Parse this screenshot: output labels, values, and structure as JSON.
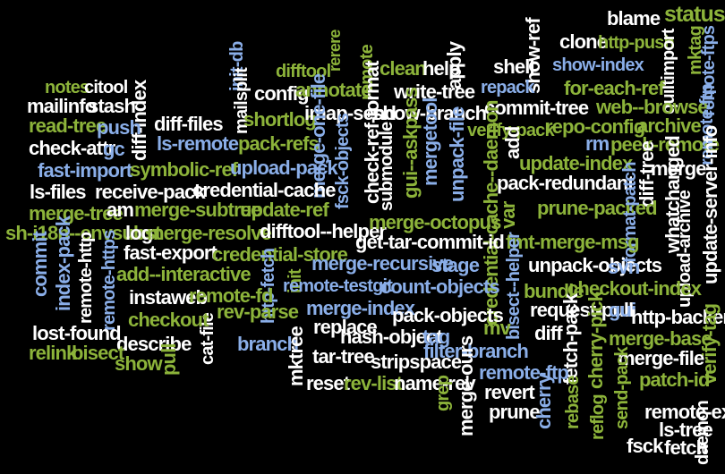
{
  "colors": {
    "white": "#ffffff",
    "green": "#8cb33a",
    "blue": "#8aaee8",
    "background": "#000000"
  },
  "words": [
    {
      "id": "blame",
      "text": "blame",
      "color": "white"
    },
    {
      "id": "status",
      "text": "status",
      "color": "green"
    },
    {
      "id": "clone",
      "text": "clone",
      "color": "white"
    },
    {
      "id": "http-push",
      "text": "http-push",
      "color": "green"
    },
    {
      "id": "quiltimport",
      "text": "quiltimport",
      "color": "white"
    },
    {
      "id": "mktag",
      "text": "mktag",
      "color": "green"
    },
    {
      "id": "show-ref",
      "text": "show-ref",
      "color": "white"
    },
    {
      "id": "show-index",
      "text": "show-index",
      "color": "blue"
    },
    {
      "id": "remote-ftps",
      "text": "remote-ftps",
      "color": "blue"
    },
    {
      "id": "init-db",
      "text": "init-db",
      "color": "blue"
    },
    {
      "id": "difftool",
      "text": "difftool",
      "color": "green"
    },
    {
      "id": "rerere",
      "text": "rerere",
      "color": "green"
    },
    {
      "id": "remote-v",
      "text": "remote",
      "color": "green"
    },
    {
      "id": "clean",
      "text": "clean",
      "color": "green"
    },
    {
      "id": "help",
      "text": "help",
      "color": "white"
    },
    {
      "id": "apply",
      "text": "apply",
      "color": "white"
    },
    {
      "id": "shell",
      "text": "shell",
      "color": "white"
    },
    {
      "id": "for-each-ref",
      "text": "for-each-ref",
      "color": "green"
    },
    {
      "id": "notes",
      "text": "notes",
      "color": "green"
    },
    {
      "id": "citool",
      "text": "citool",
      "color": "white"
    },
    {
      "id": "mailinfo",
      "text": "mailinfo",
      "color": "white"
    },
    {
      "id": "stash",
      "text": "stash",
      "color": "white"
    },
    {
      "id": "config",
      "text": "config",
      "color": "white"
    },
    {
      "id": "annotate",
      "text": "annotate",
      "color": "green"
    },
    {
      "id": "write-tree",
      "text": "write-tree",
      "color": "white"
    },
    {
      "id": "repack",
      "text": "repack",
      "color": "blue"
    },
    {
      "id": "web--browse",
      "text": "web--browse",
      "color": "green"
    },
    {
      "id": "diff-index",
      "text": "diff-index",
      "color": "white"
    },
    {
      "id": "mailsplit",
      "text": "mailsplit",
      "color": "white"
    },
    {
      "id": "shortlog",
      "text": "shortlog",
      "color": "green"
    },
    {
      "id": "imap-send",
      "text": "imap-send",
      "color": "white"
    },
    {
      "id": "show-branch",
      "text": "show-branch",
      "color": "white"
    },
    {
      "id": "commit-tree",
      "text": "commit-tree",
      "color": "white"
    },
    {
      "id": "read-tree",
      "text": "read-tree",
      "color": "green"
    },
    {
      "id": "push",
      "text": "push",
      "color": "blue"
    },
    {
      "id": "diff-files",
      "text": "diff-files",
      "color": "white"
    },
    {
      "id": "check-ref-format",
      "text": "check-ref-format",
      "color": "white"
    },
    {
      "id": "archive",
      "text": "archive",
      "color": "green"
    },
    {
      "id": "ls-remote",
      "text": "ls-remote",
      "color": "blue"
    },
    {
      "id": "pack-refs",
      "text": "pack-refs",
      "color": "green"
    },
    {
      "id": "merge-one-file",
      "text": "merge-one-file",
      "color": "blue"
    },
    {
      "id": "gui--askpass",
      "text": "gui--askpass",
      "color": "green"
    },
    {
      "id": "verify-pack",
      "text": "verify-pack",
      "color": "green"
    },
    {
      "id": "repo-config",
      "text": "repo-config",
      "color": "green"
    },
    {
      "id": "check-attr",
      "text": "check-attr",
      "color": "white"
    },
    {
      "id": "gc",
      "text": "gc",
      "color": "blue"
    },
    {
      "id": "mergetool",
      "text": "mergetool",
      "color": "blue"
    },
    {
      "id": "rm",
      "text": "rm",
      "color": "blue"
    },
    {
      "id": "peek-remote",
      "text": "peek-remote",
      "color": "green"
    },
    {
      "id": "remote-ftp-v",
      "text": "remote-ftp",
      "color": "blue"
    },
    {
      "id": "fast-import",
      "text": "fast-import",
      "color": "blue"
    },
    {
      "id": "symbolic-ref",
      "text": "symbolic-ref",
      "color": "green"
    },
    {
      "id": "upload-pack",
      "text": "upload-pack",
      "color": "blue"
    },
    {
      "id": "fsck-objects",
      "text": "fsck-objects",
      "color": "blue"
    },
    {
      "id": "unpack-file",
      "text": "unpack-file",
      "color": "blue"
    },
    {
      "id": "add",
      "text": "add",
      "color": "white"
    },
    {
      "id": "update-index",
      "text": "update-index",
      "color": "green"
    },
    {
      "id": "merge",
      "text": "merge",
      "color": "white"
    },
    {
      "id": "ls-files",
      "text": "ls-files",
      "color": "white"
    },
    {
      "id": "receive-pack",
      "text": "receive-pack",
      "color": "white"
    },
    {
      "id": "credential-cache",
      "text": "credential-cache",
      "color": "white"
    },
    {
      "id": "submodule",
      "text": "submodule",
      "color": "white"
    },
    {
      "id": "pack-redundant",
      "text": "pack-redundant",
      "color": "white"
    },
    {
      "id": "diff-tree",
      "text": "diff-tree",
      "color": "white"
    },
    {
      "id": "whatchanged",
      "text": "whatchanged",
      "color": "white"
    },
    {
      "id": "update-server-info",
      "text": "update-server-info",
      "color": "white"
    },
    {
      "id": "merge-tree",
      "text": "merge-tree",
      "color": "green"
    },
    {
      "id": "am",
      "text": "am",
      "color": "white"
    },
    {
      "id": "merge-subtree",
      "text": "merge-subtree",
      "color": "green"
    },
    {
      "id": "update-ref",
      "text": "update-ref",
      "color": "green"
    },
    {
      "id": "credential-cache--daemon",
      "text": "credential-cache--daemon",
      "color": "green"
    },
    {
      "id": "var",
      "text": "var",
      "color": "green"
    },
    {
      "id": "prune-packed",
      "text": "prune-packed",
      "color": "green"
    },
    {
      "id": "format-patch",
      "text": "format-patch",
      "color": "blue"
    },
    {
      "id": "sh-i18n--envsubst",
      "text": "sh-i18n--envsubst",
      "color": "green"
    },
    {
      "id": "log",
      "text": "log",
      "color": "white"
    },
    {
      "id": "merge-resolve",
      "text": "merge-resolve",
      "color": "green"
    },
    {
      "id": "difftool--helper",
      "text": "difftool--helper",
      "color": "white"
    },
    {
      "id": "merge-octopus",
      "text": "merge-octopus",
      "color": "green"
    },
    {
      "id": "get-tar-commit-id",
      "text": "get-tar-commit-id",
      "color": "white"
    },
    {
      "id": "fmt-merge-msg",
      "text": "fmt-merge-msg",
      "color": "green"
    },
    {
      "id": "upload-archive",
      "text": "upload-archive",
      "color": "white"
    },
    {
      "id": "commit",
      "text": "commit",
      "color": "blue"
    },
    {
      "id": "index-pack",
      "text": "index-pack",
      "color": "blue"
    },
    {
      "id": "remote-http",
      "text": "remote-http",
      "color": "white"
    },
    {
      "id": "remote-https",
      "text": "remote-https",
      "color": "blue"
    },
    {
      "id": "fast-export",
      "text": "fast-export",
      "color": "white"
    },
    {
      "id": "credential-store",
      "text": "credential-store",
      "color": "green"
    },
    {
      "id": "merge-recursive",
      "text": "merge-recursive",
      "color": "blue"
    },
    {
      "id": "stage",
      "text": "stage",
      "color": "blue"
    },
    {
      "id": "unpack-objects",
      "text": "unpack-objects",
      "color": "white"
    },
    {
      "id": "svn",
      "text": "svn",
      "color": "blue"
    },
    {
      "id": "add--interactive",
      "text": "add--interactive",
      "color": "green"
    },
    {
      "id": "http-fetch",
      "text": "http-fetch",
      "color": "blue"
    },
    {
      "id": "init",
      "text": "init",
      "color": "green"
    },
    {
      "id": "remote-testgit",
      "text": "remote-testgit",
      "color": "blue"
    },
    {
      "id": "count-objects",
      "text": "count-objects",
      "color": "blue"
    },
    {
      "id": "bisect--helper",
      "text": "bisect--helper",
      "color": "blue"
    },
    {
      "id": "bundle",
      "text": "bundle",
      "color": "green"
    },
    {
      "id": "checkout-index",
      "text": "checkout-index",
      "color": "green"
    },
    {
      "id": "instaweb",
      "text": "instaweb",
      "color": "white"
    },
    {
      "id": "remote-fd",
      "text": "remote-fd",
      "color": "green"
    },
    {
      "id": "cat-file",
      "text": "cat-file",
      "color": "white"
    },
    {
      "id": "rev-parse",
      "text": "rev-parse",
      "color": "green"
    },
    {
      "id": "merge-index",
      "text": "merge-index",
      "color": "blue"
    },
    {
      "id": "pack-objects",
      "text": "pack-objects",
      "color": "white"
    },
    {
      "id": "request-pull",
      "text": "request-pull",
      "color": "white"
    },
    {
      "id": "gui",
      "text": "gui",
      "color": "blue"
    },
    {
      "id": "http-backend",
      "text": "http-backend",
      "color": "white"
    },
    {
      "id": "checkout",
      "text": "checkout",
      "color": "green"
    },
    {
      "id": "lost-found",
      "text": "lost-found",
      "color": "white"
    },
    {
      "id": "branch",
      "text": "branch",
      "color": "blue"
    },
    {
      "id": "mktree",
      "text": "mktree",
      "color": "white"
    },
    {
      "id": "replace",
      "text": "replace",
      "color": "white"
    },
    {
      "id": "hash-object",
      "text": "hash-object",
      "color": "white"
    },
    {
      "id": "tag",
      "text": "tag",
      "color": "blue"
    },
    {
      "id": "mv",
      "text": "mv",
      "color": "green"
    },
    {
      "id": "diff",
      "text": "diff",
      "color": "white"
    },
    {
      "id": "fetch-pack",
      "text": "fetch-pack",
      "color": "white"
    },
    {
      "id": "cherry-pick",
      "text": "cherry-pick",
      "color": "green"
    },
    {
      "id": "merge-base",
      "text": "merge-base",
      "color": "green"
    },
    {
      "id": "verify-tag",
      "text": "verify-tag",
      "color": "green"
    },
    {
      "id": "describe",
      "text": "describe",
      "color": "white"
    },
    {
      "id": "relink",
      "text": "relink",
      "color": "green"
    },
    {
      "id": "bisect",
      "text": "bisect",
      "color": "green"
    },
    {
      "id": "show",
      "text": "show",
      "color": "green"
    },
    {
      "id": "pull",
      "text": "pull",
      "color": "green"
    },
    {
      "id": "tar-tree",
      "text": "tar-tree",
      "color": "white"
    },
    {
      "id": "filter-branch",
      "text": "filter-branch",
      "color": "blue"
    },
    {
      "id": "merge-file",
      "text": "merge-file",
      "color": "white"
    },
    {
      "id": "stripspace",
      "text": "stripspace",
      "color": "white"
    },
    {
      "id": "merge-ours",
      "text": "merge-ours",
      "color": "white"
    },
    {
      "id": "remote-ftp-h",
      "text": "remote-ftp",
      "color": "blue"
    },
    {
      "id": "patch-id",
      "text": "patch-id",
      "color": "green"
    },
    {
      "id": "reset",
      "text": "reset",
      "color": "white"
    },
    {
      "id": "rev-list",
      "text": "rev-list",
      "color": "green"
    },
    {
      "id": "name-rev",
      "text": "name-rev",
      "color": "white"
    },
    {
      "id": "revert",
      "text": "revert",
      "color": "white"
    },
    {
      "id": "rebase",
      "text": "rebase",
      "color": "green"
    },
    {
      "id": "reflog",
      "text": "reflog",
      "color": "green"
    },
    {
      "id": "send-pack",
      "text": "send-pack",
      "color": "green"
    },
    {
      "id": "remote-ext",
      "text": "remote-ext",
      "color": "white"
    },
    {
      "id": "grep",
      "text": "grep",
      "color": "green"
    },
    {
      "id": "prune",
      "text": "prune",
      "color": "white"
    },
    {
      "id": "cherry",
      "text": "cherry",
      "color": "blue"
    },
    {
      "id": "ls-tree",
      "text": "ls-tree",
      "color": "white"
    },
    {
      "id": "fsck",
      "text": "fsck",
      "color": "white"
    },
    {
      "id": "fetch",
      "text": "fetch",
      "color": "white"
    },
    {
      "id": "daemon",
      "text": "daemon",
      "color": "white"
    }
  ]
}
